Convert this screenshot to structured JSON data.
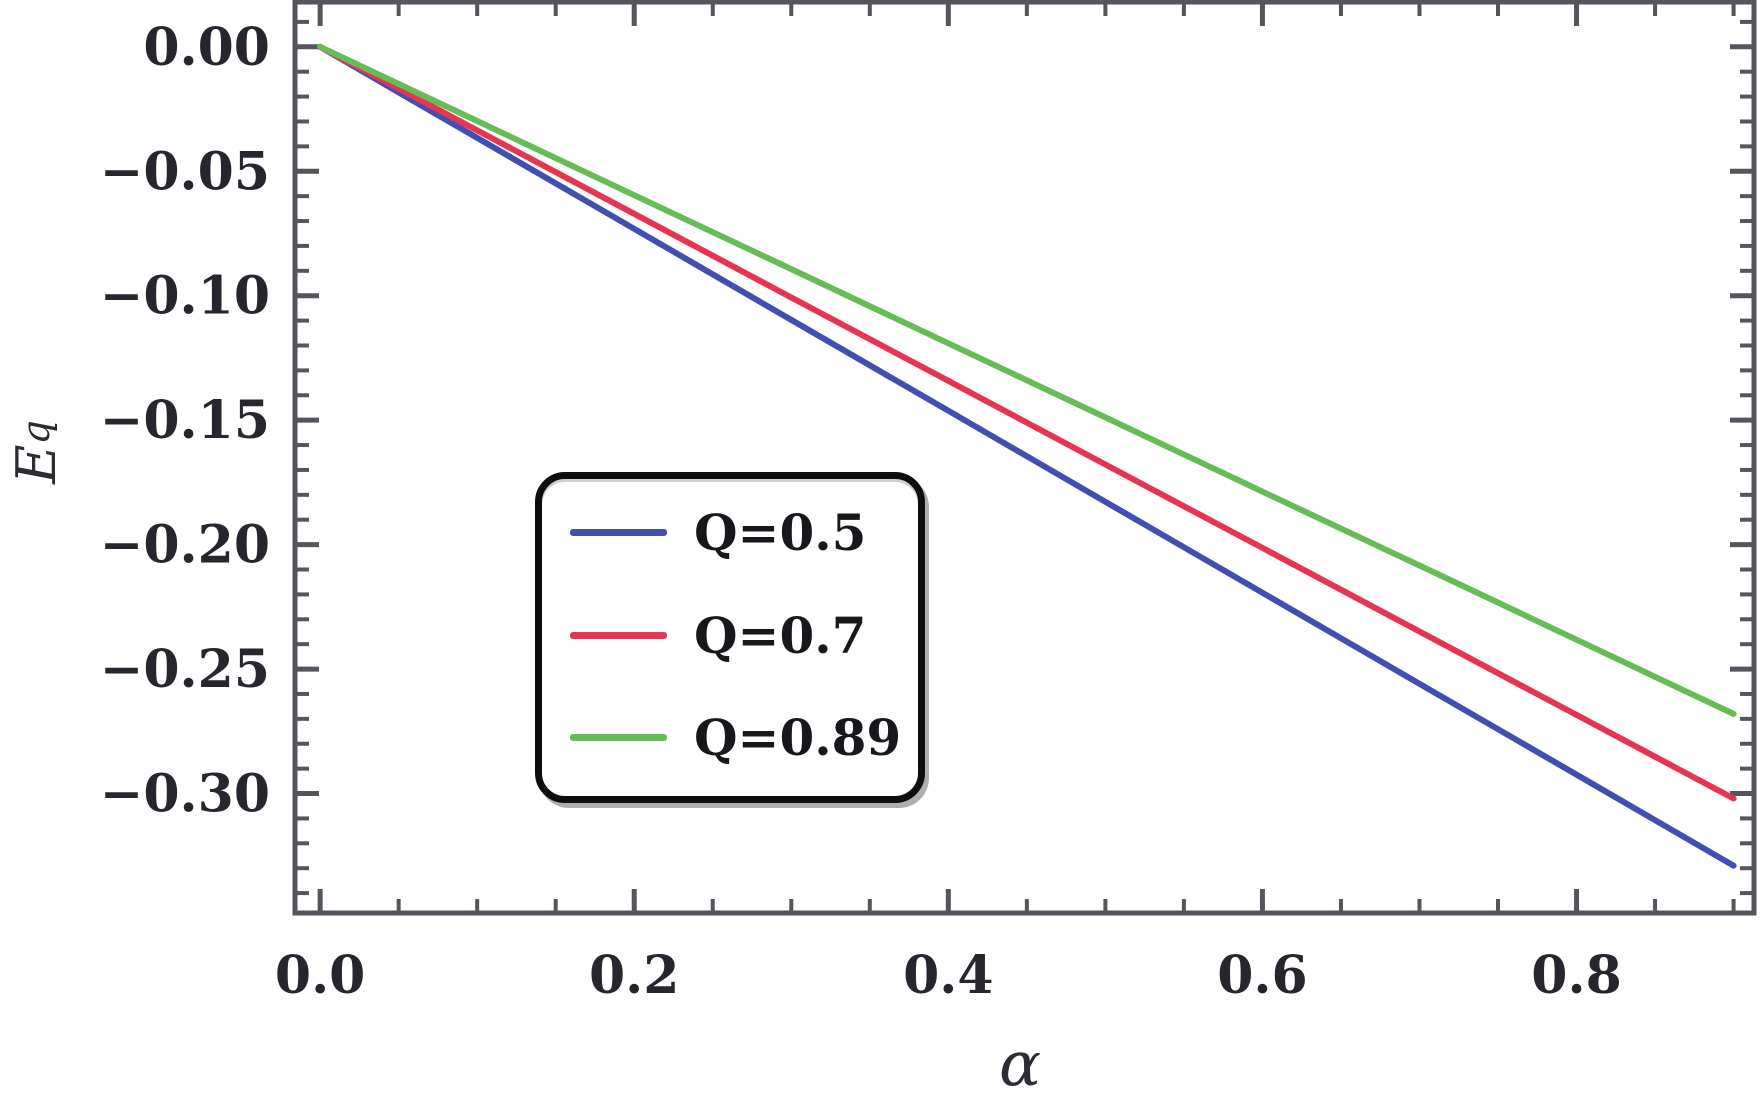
{
  "figure": {
    "background": "#ffffff"
  },
  "chart_data": {
    "type": "line",
    "title": "",
    "xlabel": "α",
    "ylabel_main": "E",
    "ylabel_subscript": "q",
    "xlim": [
      -0.016,
      0.913
    ],
    "ylim": [
      -0.348,
      0.018
    ],
    "grid": false,
    "frame": true,
    "axis_color": "#55555d",
    "tick_label_color": "#26262e",
    "x_minor_step": 0.05,
    "y_minor_step": 0.01,
    "x_ticks": {
      "values": [
        0.0,
        0.2,
        0.4,
        0.6,
        0.8
      ],
      "labels": [
        "0.0",
        "0.2",
        "0.4",
        "0.6",
        "0.8"
      ]
    },
    "y_ticks": {
      "values": [
        0.0,
        -0.05,
        -0.1,
        -0.15,
        -0.2,
        -0.25,
        -0.3
      ],
      "labels": [
        "0.00",
        "−0.05",
        "−0.10",
        "−0.15",
        "−0.20",
        "−0.25",
        "−0.30"
      ]
    },
    "x": [
      0.0,
      0.1,
      0.2,
      0.3,
      0.4,
      0.5,
      0.6,
      0.7,
      0.8,
      0.9
    ],
    "series": [
      {
        "name": "Q=0.5",
        "color": "#4150b0",
        "values": [
          0.0,
          -0.0366,
          -0.0731,
          -0.1097,
          -0.1462,
          -0.1828,
          -0.2193,
          -0.2559,
          -0.2924,
          -0.329
        ]
      },
      {
        "name": "Q=0.7",
        "color": "#e73551",
        "values": [
          0.0,
          -0.0336,
          -0.0671,
          -0.1007,
          -0.1342,
          -0.1678,
          -0.2013,
          -0.2349,
          -0.2684,
          -0.302
        ]
      },
      {
        "name": "Q=0.89",
        "color": "#66bd55",
        "values": [
          0.0,
          -0.0298,
          -0.0596,
          -0.0893,
          -0.1191,
          -0.1489,
          -0.1787,
          -0.2084,
          -0.2382,
          -0.268
        ]
      }
    ],
    "legend": {
      "position": "inside-center-left",
      "entries": [
        "Q=0.5",
        "Q=0.7",
        "Q=0.89"
      ]
    }
  }
}
